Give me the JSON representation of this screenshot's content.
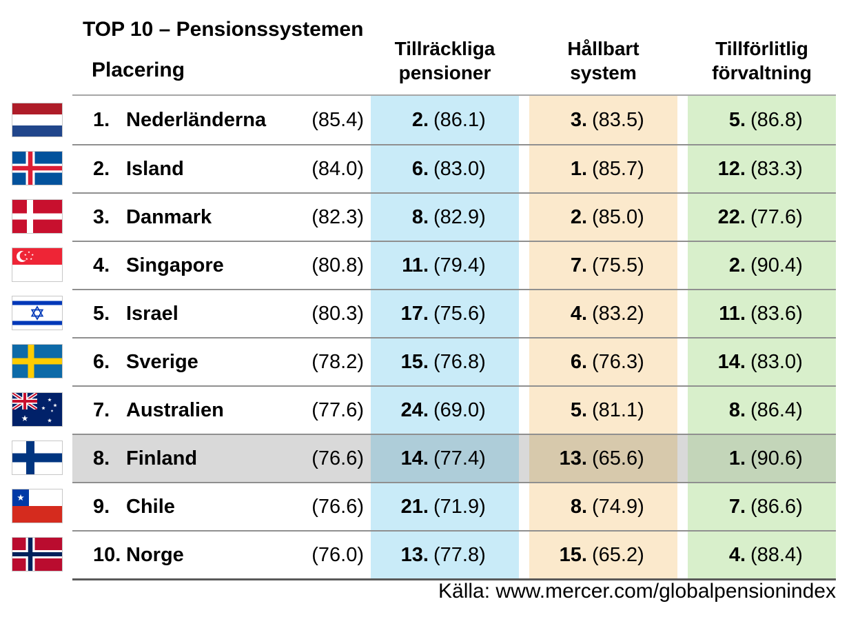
{
  "chart_data": {
    "type": "table",
    "title": "TOP 10 – Pensionssystemen",
    "row_header": "Placering",
    "columns": [
      {
        "id": "adequacy",
        "label": [
          "Tillräckliga",
          "pensioner"
        ]
      },
      {
        "id": "sustainability",
        "label": [
          "Hållbart",
          "system"
        ]
      },
      {
        "id": "integrity",
        "label": [
          "Tillförlitlig",
          "förvaltning"
        ]
      }
    ],
    "rows": [
      {
        "flag": "netherlands",
        "rank": "1.",
        "country": "Nederländerna",
        "score": "(85.4)",
        "highlighted": false,
        "cells": [
          [
            "2.",
            "(86.1)"
          ],
          [
            "3.",
            "(83.5)"
          ],
          [
            "5.",
            "(86.8)"
          ]
        ]
      },
      {
        "flag": "iceland",
        "rank": "2.",
        "country": "Island",
        "score": "(84.0)",
        "highlighted": false,
        "cells": [
          [
            "6.",
            "(83.0)"
          ],
          [
            "1.",
            "(85.7)"
          ],
          [
            "12.",
            "(83.3)"
          ]
        ]
      },
      {
        "flag": "denmark",
        "rank": "3.",
        "country": "Danmark",
        "score": "(82.3)",
        "highlighted": false,
        "cells": [
          [
            "8.",
            "(82.9)"
          ],
          [
            "2.",
            "(85.0)"
          ],
          [
            "22.",
            "(77.6)"
          ]
        ]
      },
      {
        "flag": "singapore",
        "rank": "4.",
        "country": "Singapore",
        "score": "(80.8)",
        "highlighted": false,
        "cells": [
          [
            "11.",
            "(79.4)"
          ],
          [
            "7.",
            "(75.5)"
          ],
          [
            "2.",
            "(90.4)"
          ]
        ]
      },
      {
        "flag": "israel",
        "rank": "5.",
        "country": "Israel",
        "score": "(80.3)",
        "highlighted": false,
        "cells": [
          [
            "17.",
            "(75.6)"
          ],
          [
            "4.",
            "(83.2)"
          ],
          [
            "11.",
            "(83.6)"
          ]
        ]
      },
      {
        "flag": "sweden",
        "rank": "6.",
        "country": "Sverige",
        "score": "(78.2)",
        "highlighted": false,
        "cells": [
          [
            "15.",
            "(76.8)"
          ],
          [
            "6.",
            "(76.3)"
          ],
          [
            "14.",
            "(83.0)"
          ]
        ]
      },
      {
        "flag": "australia",
        "rank": "7.",
        "country": "Australien",
        "score": "(77.6)",
        "highlighted": false,
        "cells": [
          [
            "24.",
            "(69.0)"
          ],
          [
            "5.",
            "(81.1)"
          ],
          [
            "8.",
            "(86.4)"
          ]
        ]
      },
      {
        "flag": "finland",
        "rank": "8.",
        "country": "Finland",
        "score": "(76.6)",
        "highlighted": true,
        "cells": [
          [
            "14.",
            "(77.4)"
          ],
          [
            "13.",
            "(65.6)"
          ],
          [
            "1.",
            "(90.6)"
          ]
        ]
      },
      {
        "flag": "chile",
        "rank": "9.",
        "country": "Chile",
        "score": "(76.6)",
        "highlighted": false,
        "cells": [
          [
            "21.",
            "(71.9)"
          ],
          [
            "8.",
            "(74.9)"
          ],
          [
            "7.",
            "(86.6)"
          ]
        ]
      },
      {
        "flag": "norway",
        "rank": "10.",
        "country": "Norge",
        "score": "(76.0)",
        "highlighted": false,
        "cells": [
          [
            "13.",
            "(77.8)"
          ],
          [
            "15.",
            "(65.2)"
          ],
          [
            "4.",
            "(88.4)"
          ]
        ]
      }
    ],
    "source": "Källa: www.mercer.com/globalpensionindex",
    "colors": {
      "adequacy": "#C9EBF8",
      "sustainability": "#FBE9CC",
      "integrity": "#D8EFCB",
      "adequacy_highlight": "#AECDD9",
      "sustainability_highlight": "#D7C9AC",
      "integrity_highlight": "#C3D5B9",
      "row_highlight": "#D9D9D9"
    }
  }
}
